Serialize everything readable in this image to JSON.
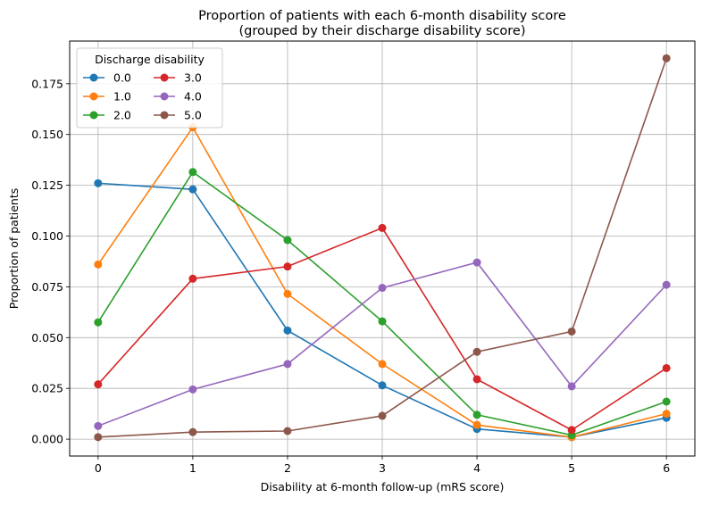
{
  "chart_data": {
    "type": "line",
    "title_lines": [
      "Proportion of patients with each 6-month disability score",
      "(grouped by their discharge disability score)"
    ],
    "xlabel": "Disability at 6-month follow-up (mRS score)",
    "ylabel": "Proportion of patients",
    "x": [
      0,
      1,
      2,
      3,
      4,
      5,
      6
    ],
    "x_ticks": [
      "0",
      "1",
      "2",
      "3",
      "4",
      "5",
      "6"
    ],
    "xlim": [
      -0.3,
      6.3
    ],
    "y_ticks": [
      0.0,
      0.025,
      0.05,
      0.075,
      0.1,
      0.125,
      0.15,
      0.175
    ],
    "y_tick_labels": [
      "0.000",
      "0.025",
      "0.050",
      "0.075",
      "0.100",
      "0.125",
      "0.150",
      "0.175"
    ],
    "ylim": [
      -0.0083,
      0.196
    ],
    "grid": true,
    "legend": {
      "title": "Discharge disability",
      "placement": "top-left",
      "columns": 2
    },
    "series": [
      {
        "name": "0.0",
        "color": "#1f77b4",
        "values": [
          0.126,
          0.123,
          0.0535,
          0.0265,
          0.005,
          0.001,
          0.0105
        ]
      },
      {
        "name": "1.0",
        "color": "#ff7f0e",
        "values": [
          0.086,
          0.1535,
          0.0715,
          0.037,
          0.007,
          0.001,
          0.0125
        ]
      },
      {
        "name": "2.0",
        "color": "#2ca02c",
        "values": [
          0.0575,
          0.1315,
          0.098,
          0.058,
          0.012,
          0.002,
          0.0185
        ]
      },
      {
        "name": "3.0",
        "color": "#d62728",
        "values": [
          0.027,
          0.079,
          0.085,
          0.104,
          0.0295,
          0.0045,
          0.035
        ]
      },
      {
        "name": "4.0",
        "color": "#9467bd",
        "values": [
          0.0065,
          0.0245,
          0.037,
          0.0745,
          0.087,
          0.026,
          0.076
        ]
      },
      {
        "name": "5.0",
        "color": "#8c564b",
        "values": [
          0.001,
          0.0035,
          0.004,
          0.0115,
          0.043,
          0.053,
          0.1875
        ]
      }
    ]
  }
}
